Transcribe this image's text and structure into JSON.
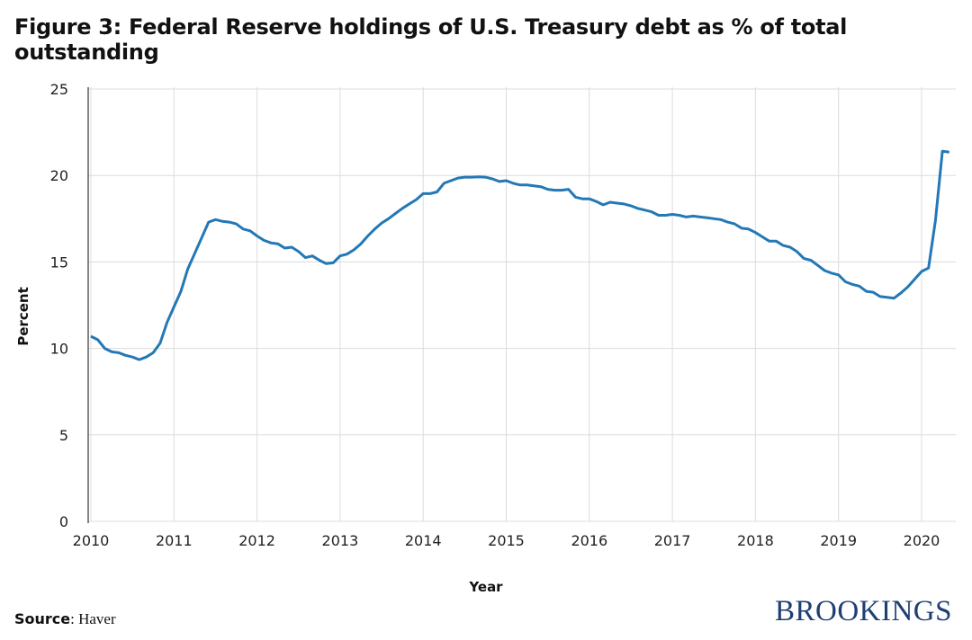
{
  "title": "Figure 3: Federal Reserve holdings of U.S. Treasury debt as % of total outstanding",
  "source_label": "Source",
  "source_value": ": Haver",
  "logo": "BROOKINGS",
  "chart_data": {
    "type": "line",
    "title": "Figure 3: Federal Reserve holdings of U.S. Treasury debt as % of total outstanding",
    "xlabel": "Year",
    "ylabel": "Percent",
    "xlim": [
      2010,
      2020.42
    ],
    "ylim": [
      0,
      25
    ],
    "x_ticks": [
      "2010",
      "2011",
      "2012",
      "2013",
      "2014",
      "2015",
      "2016",
      "2017",
      "2018",
      "2019",
      "2020"
    ],
    "y_ticks": [
      "0",
      "5",
      "10",
      "15",
      "20",
      "25"
    ],
    "grid": true,
    "legend": "none",
    "line_color": "#2378b5",
    "frequency": "monthly",
    "start": "2010-01",
    "series": [
      {
        "values": [
          10.7,
          10.5,
          10.0,
          9.8,
          9.75,
          9.6,
          9.5,
          9.35,
          9.5,
          9.75,
          10.3,
          11.5,
          12.4,
          13.3,
          14.6,
          15.5,
          16.4,
          17.3,
          17.45,
          17.35,
          17.3,
          17.2,
          16.9,
          16.8,
          16.5,
          16.25,
          16.1,
          16.05,
          15.8,
          15.85,
          15.6,
          15.25,
          15.35,
          15.1,
          14.9,
          14.95,
          15.35,
          15.45,
          15.7,
          16.05,
          16.5,
          16.9,
          17.25,
          17.5,
          17.8,
          18.1,
          18.35,
          18.6,
          18.95,
          18.95,
          19.05,
          19.55,
          19.7,
          19.85,
          19.9,
          19.9,
          19.92,
          19.9,
          19.8,
          19.65,
          19.7,
          19.55,
          19.45,
          19.45,
          19.4,
          19.35,
          19.2,
          19.15,
          19.15,
          19.2,
          18.75,
          18.65,
          18.65,
          18.5,
          18.3,
          18.45,
          18.4,
          18.35,
          18.25,
          18.1,
          18.0,
          17.9,
          17.7,
          17.7,
          17.75,
          17.7,
          17.6,
          17.65,
          17.6,
          17.55,
          17.5,
          17.45,
          17.3,
          17.2,
          16.95,
          16.9,
          16.7,
          16.45,
          16.2,
          16.2,
          15.95,
          15.85,
          15.6,
          15.2,
          15.1,
          14.8,
          14.5,
          14.35,
          14.25,
          13.85,
          13.7,
          13.6,
          13.3,
          13.25,
          13.0,
          12.95,
          12.9,
          13.2,
          13.55,
          14.0,
          14.45,
          14.65,
          17.4,
          21.4,
          21.35
        ]
      }
    ]
  }
}
